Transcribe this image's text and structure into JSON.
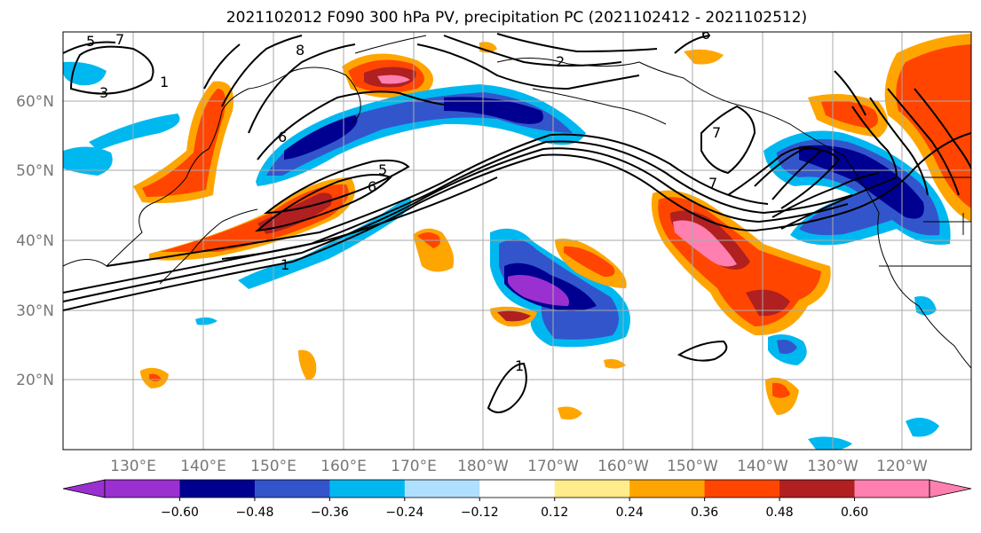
{
  "title": "2021102012 F090 300 hPa PV, precipitation PC (2021102412 - 2021102512)",
  "lat_labels": [
    "60°N",
    "50°N",
    "40°N",
    "30°N",
    "20°N"
  ],
  "lon_labels": [
    "130°E",
    "140°E",
    "150°E",
    "160°E",
    "170°E",
    "180°W",
    "170°W",
    "160°W",
    "150°W",
    "140°W",
    "130°W",
    "120°W"
  ],
  "colorbar": {
    "colors": [
      "#9b30d0",
      "#000090",
      "#3355cc",
      "#00b8f0",
      "#b0e0ff",
      "#ffffff",
      "#ffec8a",
      "#ffa500",
      "#ff4500",
      "#b02020",
      "#ff80b0"
    ],
    "tick_labels": [
      "−0.60",
      "−0.48",
      "−0.36",
      "−0.24",
      "−0.12",
      "0.12",
      "0.24",
      "0.36",
      "0.48",
      "0.60"
    ]
  },
  "contour_labels": [
    "5",
    "7",
    "8",
    "1",
    "3",
    "6",
    "2",
    "6",
    "5",
    "6",
    "7",
    "1",
    "7",
    "1"
  ],
  "colors": {
    "grid": "#aaaaaa",
    "contour": "#000000",
    "coast": "#000000"
  }
}
